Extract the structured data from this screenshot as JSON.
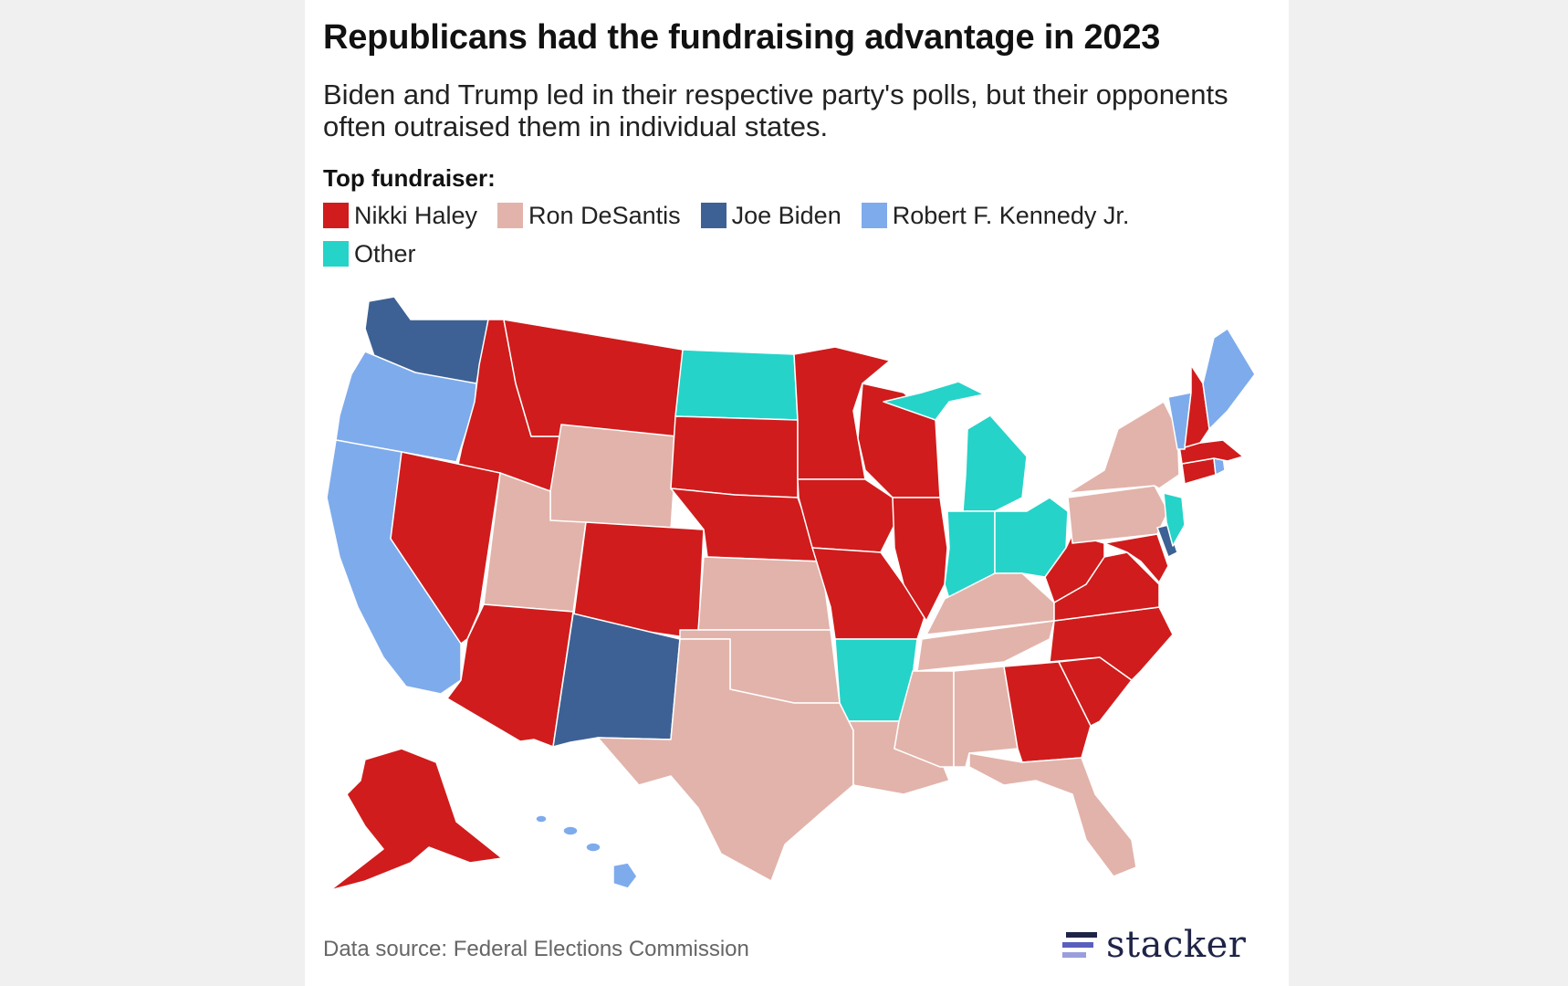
{
  "header": {
    "title": "Republicans had the fundraising advantage in 2023",
    "subtitle": "Biden and Trump led in their respective party's polls, but their opponents often outraised them in individual states."
  },
  "legend": {
    "title": "Top fundraiser:",
    "items": [
      {
        "label": "Nikki Haley",
        "color": "#d01c1c"
      },
      {
        "label": "Ron DeSantis",
        "color": "#e2b3aa"
      },
      {
        "label": "Joe Biden",
        "color": "#3d6194"
      },
      {
        "label": "Robert F. Kennedy Jr.",
        "color": "#7eabec"
      },
      {
        "label": "Other",
        "color": "#26d3c8"
      }
    ]
  },
  "map_data": {
    "Nikki Haley": [
      "ID",
      "MT",
      "NV",
      "AZ",
      "CO",
      "SD",
      "NE",
      "MN",
      "IA",
      "WI",
      "MO",
      "IL",
      "WV",
      "VA",
      "MD",
      "NC",
      "SC",
      "GA",
      "NH",
      "MA",
      "CT",
      "AK"
    ],
    "Ron DeSantis": [
      "WY",
      "UT",
      "KS",
      "OK",
      "TX",
      "LA",
      "MS",
      "AL",
      "TN",
      "KY",
      "FL",
      "NY",
      "PA"
    ],
    "Joe Biden": [
      "WA",
      "NM",
      "DE"
    ],
    "Robert F. Kennedy Jr.": [
      "OR",
      "CA",
      "HI",
      "ME",
      "VT",
      "RI"
    ],
    "Other": [
      "ND",
      "AR",
      "MI",
      "IN",
      "OH",
      "NJ"
    ]
  },
  "footer": {
    "source": "Data source: Federal Elections Commission",
    "brand": "stacker"
  }
}
